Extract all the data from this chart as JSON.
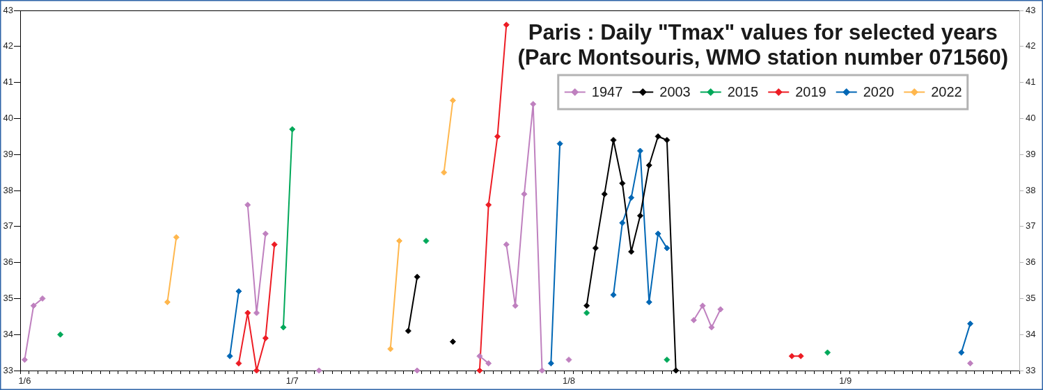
{
  "chart_data": {
    "type": "line",
    "title": "Paris : Daily \"Tmax\" values for selected years\n(Parc Montsouris, WMO station number 071560)",
    "categories": [
      "1/6",
      null,
      null,
      null,
      null,
      null,
      null,
      null,
      null,
      null,
      null,
      null,
      null,
      null,
      null,
      null,
      null,
      null,
      null,
      null,
      null,
      null,
      null,
      null,
      null,
      null,
      null,
      null,
      null,
      null,
      "1/7",
      null,
      null,
      null,
      null,
      null,
      null,
      null,
      null,
      null,
      null,
      null,
      null,
      null,
      null,
      null,
      null,
      null,
      null,
      null,
      null,
      null,
      null,
      null,
      null,
      null,
      null,
      null,
      null,
      null,
      null,
      "1/8",
      null,
      null,
      null,
      null,
      null,
      null,
      null,
      null,
      null,
      null,
      null,
      null,
      null,
      null,
      null,
      null,
      null,
      null,
      null,
      null,
      null,
      null,
      null,
      null,
      null,
      null,
      null,
      null,
      null,
      null,
      "1/9",
      null,
      null,
      null,
      null,
      null,
      null,
      null,
      null,
      null,
      null,
      null,
      null,
      null,
      null,
      null,
      null,
      null,
      null,
      null
    ],
    "series": [
      {
        "name": "1947",
        "color": "#bf80bf",
        "values": [
          33.3,
          34.8,
          35,
          null,
          null,
          null,
          null,
          null,
          null,
          null,
          null,
          null,
          null,
          null,
          null,
          null,
          null,
          null,
          null,
          null,
          null,
          null,
          null,
          null,
          null,
          37.6,
          34.6,
          36.8,
          null,
          null,
          null,
          null,
          null,
          33,
          null,
          null,
          null,
          null,
          null,
          null,
          null,
          null,
          null,
          null,
          33,
          null,
          null,
          null,
          null,
          null,
          null,
          33.4,
          33.2,
          null,
          36.5,
          34.8,
          37.9,
          40.4,
          33,
          null,
          null,
          33.3,
          null,
          null,
          null,
          null,
          null,
          null,
          null,
          null,
          null,
          null,
          null,
          null,
          null,
          34.4,
          34.8,
          34.2,
          34.7,
          null,
          null,
          null,
          null,
          null,
          null,
          null,
          null,
          null,
          null,
          null,
          null,
          null,
          null,
          null,
          null,
          null,
          null,
          null,
          null,
          null,
          null,
          null,
          null,
          null,
          null,
          null,
          33.2,
          null,
          null,
          null,
          null,
          null
        ]
      },
      {
        "name": "2003",
        "color": "#000000",
        "values": [
          null,
          null,
          null,
          null,
          null,
          null,
          null,
          null,
          null,
          null,
          null,
          null,
          null,
          null,
          null,
          null,
          null,
          null,
          null,
          null,
          null,
          null,
          null,
          null,
          null,
          null,
          null,
          null,
          null,
          null,
          null,
          null,
          null,
          null,
          null,
          null,
          null,
          null,
          null,
          null,
          null,
          null,
          null,
          34.1,
          35.6,
          null,
          null,
          null,
          33.8,
          null,
          null,
          null,
          null,
          null,
          null,
          null,
          null,
          null,
          null,
          null,
          null,
          null,
          null,
          34.8,
          36.4,
          37.9,
          39.4,
          38.2,
          36.3,
          37.3,
          38.7,
          39.5,
          39.4,
          33,
          null,
          null,
          null,
          null,
          null,
          null,
          null,
          null,
          null,
          null,
          null,
          null,
          null,
          null,
          null,
          null,
          null,
          null,
          null,
          null,
          null,
          null,
          null,
          null,
          null,
          null,
          null,
          null,
          null,
          null,
          null,
          null,
          null,
          null,
          null,
          null,
          null,
          null
        ]
      },
      {
        "name": "2015",
        "color": "#00a859",
        "values": [
          null,
          null,
          null,
          null,
          34,
          null,
          null,
          null,
          null,
          null,
          null,
          null,
          null,
          null,
          null,
          null,
          null,
          null,
          null,
          null,
          null,
          null,
          null,
          null,
          null,
          null,
          null,
          null,
          null,
          34.2,
          39.7,
          null,
          null,
          null,
          null,
          null,
          null,
          null,
          null,
          null,
          null,
          null,
          null,
          null,
          null,
          36.6,
          null,
          null,
          null,
          null,
          null,
          null,
          null,
          null,
          null,
          null,
          null,
          null,
          null,
          null,
          null,
          null,
          null,
          34.6,
          null,
          null,
          null,
          null,
          null,
          null,
          null,
          null,
          33.3,
          null,
          null,
          null,
          null,
          null,
          null,
          null,
          null,
          null,
          null,
          null,
          null,
          null,
          null,
          null,
          null,
          null,
          33.5,
          null,
          null,
          null,
          null,
          null,
          null,
          null,
          null,
          null,
          null,
          null,
          null,
          null,
          null,
          null,
          null,
          null,
          null,
          null,
          null,
          null
        ]
      },
      {
        "name": "2019",
        "color": "#ed1c24",
        "values": [
          null,
          null,
          null,
          null,
          null,
          null,
          null,
          null,
          null,
          null,
          null,
          null,
          null,
          null,
          null,
          null,
          null,
          null,
          null,
          null,
          null,
          null,
          null,
          null,
          33.2,
          34.6,
          33,
          33.9,
          36.5,
          null,
          null,
          null,
          null,
          null,
          null,
          null,
          null,
          null,
          null,
          null,
          null,
          null,
          null,
          null,
          null,
          null,
          null,
          null,
          null,
          null,
          null,
          33,
          37.6,
          39.5,
          42.6,
          null,
          null,
          null,
          null,
          null,
          null,
          null,
          null,
          null,
          null,
          null,
          null,
          null,
          null,
          null,
          null,
          null,
          null,
          null,
          null,
          null,
          null,
          null,
          null,
          null,
          null,
          null,
          null,
          null,
          null,
          null,
          33.4,
          33.4,
          null,
          null,
          null,
          null,
          null,
          null,
          null,
          null,
          null,
          null,
          null,
          null,
          null,
          null,
          null,
          null,
          null,
          null,
          null,
          null,
          null,
          null,
          null,
          null
        ]
      },
      {
        "name": "2020",
        "color": "#0067b5",
        "values": [
          null,
          null,
          null,
          null,
          null,
          null,
          null,
          null,
          null,
          null,
          null,
          null,
          null,
          null,
          null,
          null,
          null,
          null,
          null,
          null,
          null,
          null,
          null,
          33.4,
          35.2,
          null,
          null,
          null,
          null,
          null,
          null,
          null,
          null,
          null,
          null,
          null,
          null,
          null,
          null,
          null,
          null,
          null,
          null,
          null,
          null,
          null,
          null,
          null,
          null,
          null,
          null,
          null,
          null,
          null,
          null,
          null,
          null,
          null,
          null,
          33.2,
          39.3,
          null,
          null,
          null,
          null,
          null,
          35.1,
          37.1,
          37.8,
          39.1,
          34.9,
          36.8,
          36.4,
          null,
          null,
          null,
          null,
          null,
          null,
          null,
          null,
          null,
          null,
          null,
          null,
          null,
          null,
          null,
          null,
          null,
          null,
          null,
          null,
          null,
          null,
          null,
          null,
          null,
          null,
          null,
          null,
          null,
          null,
          null,
          null,
          33.5,
          34.3,
          null,
          null,
          null,
          null,
          null
        ]
      },
      {
        "name": "2022",
        "color": "#ffb74d",
        "values": [
          null,
          null,
          null,
          null,
          null,
          null,
          null,
          null,
          null,
          null,
          null,
          null,
          null,
          null,
          null,
          null,
          34.9,
          36.7,
          null,
          null,
          null,
          null,
          null,
          null,
          null,
          null,
          null,
          null,
          null,
          null,
          null,
          null,
          null,
          null,
          null,
          null,
          null,
          null,
          null,
          null,
          null,
          33.6,
          36.6,
          null,
          null,
          null,
          null,
          38.5,
          40.5,
          null,
          null,
          null,
          null,
          null,
          null,
          null,
          null,
          null,
          null,
          null,
          null,
          null,
          null,
          null,
          null,
          null,
          null,
          null,
          null,
          null,
          null,
          null,
          null,
          null,
          null,
          null,
          null,
          null,
          null,
          null,
          null,
          null,
          null,
          null,
          null,
          null,
          null,
          null,
          null,
          null,
          null,
          null,
          null,
          null,
          null,
          null,
          null,
          null,
          null,
          null,
          null,
          null,
          null,
          null,
          null,
          null,
          null,
          null,
          null,
          null,
          null,
          null
        ]
      }
    ],
    "ylim": [
      33,
      43
    ],
    "yticks": [
      33,
      34,
      35,
      36,
      37,
      38,
      39,
      40,
      41,
      42,
      43
    ],
    "y2lim": [
      33,
      43
    ],
    "y2ticks": [
      33,
      34,
      35,
      36,
      37,
      38,
      39,
      40,
      41,
      42,
      43
    ],
    "legend": "top right",
    "marker": "diamond"
  }
}
